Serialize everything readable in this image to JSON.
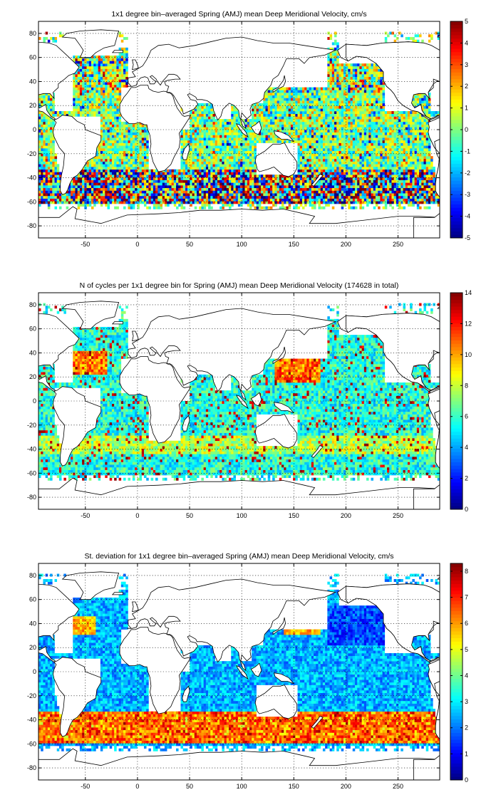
{
  "chart_data": [
    {
      "type": "heatmap",
      "title": "1x1 degree bin–averaged Spring (AMJ) mean Deep Meridional Velocity, cm/s",
      "xlim": [
        -95,
        290
      ],
      "ylim": [
        -90,
        90
      ],
      "x_ticks": [
        "-50",
        "0",
        "50",
        "100",
        "150",
        "200",
        "250"
      ],
      "y_ticks": [
        "80",
        "60",
        "40",
        "20",
        "0",
        "-20",
        "-40",
        "-60",
        "-80"
      ],
      "grid": true,
      "colormap": "jet",
      "colorbar": {
        "range": [
          -5,
          5
        ],
        "ticks": [
          "5",
          "4",
          "3",
          "2",
          "1",
          "0",
          "-1",
          "-2",
          "-3",
          "-4",
          "-5"
        ],
        "placement": "right"
      }
    },
    {
      "type": "heatmap",
      "title": "N of cycles per 1x1 degree bin for Spring (AMJ) mean Deep Meridional Velocity (174628 in total)",
      "xlim": [
        -95,
        290
      ],
      "ylim": [
        -90,
        90
      ],
      "x_ticks": [
        "-50",
        "0",
        "50",
        "100",
        "150",
        "200",
        "250"
      ],
      "y_ticks": [
        "80",
        "60",
        "40",
        "20",
        "0",
        "-20",
        "-40",
        "-60",
        "-80"
      ],
      "grid": true,
      "colormap": "jet",
      "colorbar": {
        "range": [
          0,
          14
        ],
        "ticks": [
          "14",
          "12",
          "10",
          "8",
          "6",
          "4",
          "2",
          "0"
        ],
        "placement": "right"
      }
    },
    {
      "type": "heatmap",
      "title": "St. deviation for 1x1 degree bin–averaged Spring (AMJ) mean Deep Meridional Velocity, cm/s",
      "xlim": [
        -95,
        290
      ],
      "ylim": [
        -90,
        90
      ],
      "x_ticks": [
        "-50",
        "0",
        "50",
        "100",
        "150",
        "200",
        "250"
      ],
      "y_ticks": [
        "80",
        "60",
        "40",
        "20",
        "0",
        "-20",
        "-40",
        "-60",
        "-80"
      ],
      "grid": true,
      "colormap": "jet",
      "colorbar": {
        "range": [
          0,
          8.3
        ],
        "ticks": [
          "8",
          "7",
          "6",
          "5",
          "4",
          "3",
          "2",
          "1",
          "0"
        ],
        "placement": "right"
      }
    }
  ]
}
